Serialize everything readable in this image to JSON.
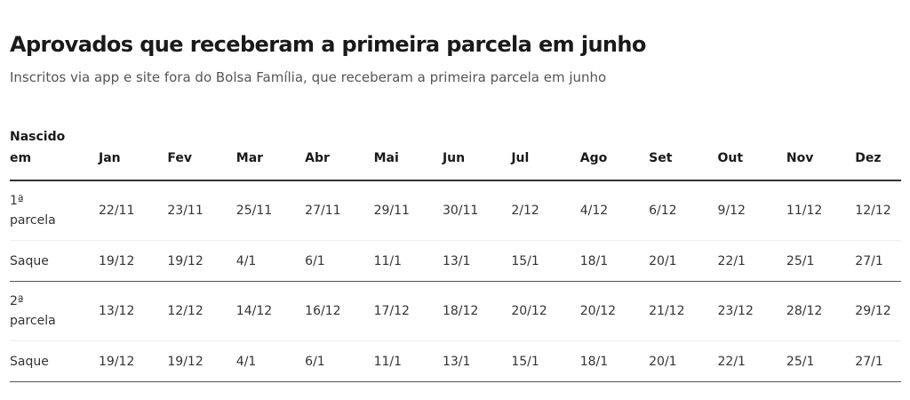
{
  "title": "Aprovados que receberam a primeira parcela em junho",
  "subtitle": "Inscritos via app e site fora do Bolsa Família, que receberam a primeira parcela em junho",
  "table": {
    "header_first": "Nascido em",
    "months": [
      "Jan",
      "Fev",
      "Mar",
      "Abr",
      "Mai",
      "Jun",
      "Jul",
      "Ago",
      "Set",
      "Out",
      "Nov",
      "Dez"
    ],
    "rows": [
      {
        "label": "1ª parcela",
        "values": [
          "22/11",
          "23/11",
          "25/11",
          "27/11",
          "29/11",
          "30/11",
          "2/12",
          "4/12",
          "6/12",
          "9/12",
          "11/12",
          "12/12"
        ]
      },
      {
        "label": "Saque",
        "values": [
          "19/12",
          "19/12",
          "4/1",
          "6/1",
          "11/1",
          "13/1",
          "15/1",
          "18/1",
          "20/1",
          "22/1",
          "25/1",
          "27/1"
        ]
      },
      {
        "label": "2ª parcela",
        "values": [
          "13/12",
          "12/12",
          "14/12",
          "16/12",
          "17/12",
          "18/12",
          "20/12",
          "20/12",
          "21/12",
          "23/12",
          "28/12",
          "29/12"
        ]
      },
      {
        "label": "Saque",
        "values": [
          "19/12",
          "19/12",
          "4/1",
          "6/1",
          "11/1",
          "13/1",
          "15/1",
          "18/1",
          "20/1",
          "22/1",
          "25/1",
          "27/1"
        ]
      }
    ]
  }
}
